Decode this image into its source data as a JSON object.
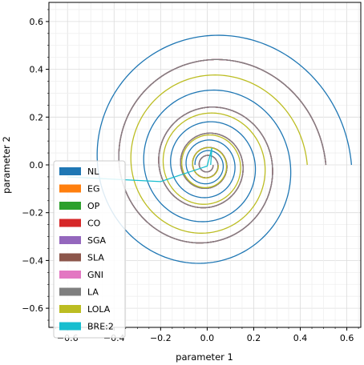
{
  "chart_data": {
    "type": "line",
    "xlabel": "parameter 1",
    "ylabel": "parameter 2",
    "xlim": [
      -0.68,
      0.66
    ],
    "ylim": [
      -0.68,
      0.68
    ],
    "xticks": [
      -0.6,
      -0.4,
      -0.2,
      0.0,
      0.2,
      0.4,
      0.6
    ],
    "yticks": [
      -0.6,
      -0.4,
      -0.2,
      0.0,
      0.2,
      0.4,
      0.6
    ],
    "xtick_labels": [
      "−0.6",
      "−0.4",
      "−0.2",
      "0.0",
      "0.2",
      "0.4",
      "0.6"
    ],
    "ytick_labels": [
      "−0.6",
      "−0.4",
      "−0.2",
      "0.0",
      "0.2",
      "0.4",
      "0.6"
    ],
    "grid": true,
    "legend_placement": "lower-left",
    "series": [
      {
        "name": "NL",
        "color": "#1f77b4",
        "shape": "spiral",
        "r0": 0.62,
        "turns": 4.5,
        "decay": 0.55
      },
      {
        "name": "EG",
        "color": "#ff7f0e",
        "shape": "spiral",
        "r0": 0.51,
        "turns": 5,
        "decay": 0.6
      },
      {
        "name": "OP",
        "color": "#2ca02c",
        "shape": "spiral",
        "r0": 0.51,
        "turns": 5,
        "decay": 0.6
      },
      {
        "name": "CO",
        "color": "#d62728",
        "shape": "spiral",
        "r0": 0.51,
        "turns": 5,
        "decay": 0.6
      },
      {
        "name": "SGA",
        "color": "#9467bd",
        "shape": "spiral",
        "r0": 0.51,
        "turns": 5,
        "decay": 0.6
      },
      {
        "name": "SLA",
        "color": "#8c564b",
        "shape": "spiral",
        "r0": 0.51,
        "turns": 5,
        "decay": 0.6
      },
      {
        "name": "GNI",
        "color": "#e377c2",
        "shape": "spiral",
        "r0": 0.51,
        "turns": 5,
        "decay": 0.6
      },
      {
        "name": "LA",
        "color": "#7f7f7f",
        "shape": "spiral",
        "r0": 0.51,
        "turns": 5,
        "decay": 0.6
      },
      {
        "name": "LOLA",
        "color": "#bcbd22",
        "shape": "spiral",
        "r0": 0.43,
        "turns": 4,
        "decay": 0.55
      },
      {
        "name": "BRE:2",
        "color": "#17becf",
        "shape": "path",
        "points": [
          [
            -0.6,
            -0.05
          ],
          [
            -0.2,
            -0.07
          ],
          [
            0.0,
            -0.005
          ],
          [
            0.02,
            0.07
          ],
          [
            0.015,
            0.0
          ]
        ]
      }
    ]
  }
}
